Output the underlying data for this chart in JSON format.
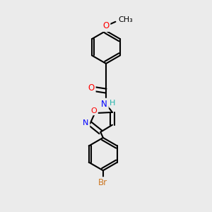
{
  "bg_color": "#ebebeb",
  "bond_color": "#000000",
  "bond_width": 1.5,
  "atom_colors": {
    "O": "#ff0000",
    "N": "#0000ff",
    "Br": "#cc7722",
    "H": "#20b2aa",
    "C": "#000000"
  },
  "font_size": 8.5,
  "fig_size": [
    3.0,
    3.0
  ],
  "dpi": 100
}
